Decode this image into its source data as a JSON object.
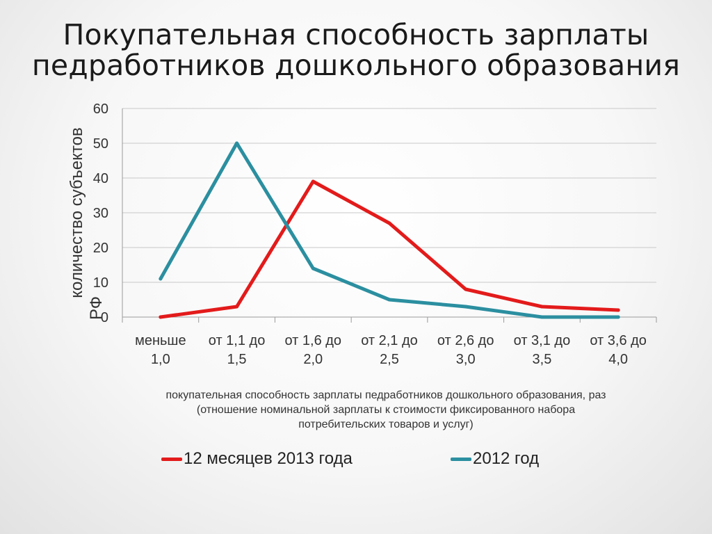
{
  "title_line1": "Покупательная способность зарплаты",
  "title_line2": "педработников дошкольного образования",
  "colors": {
    "series_2013": "#e31b1b",
    "series_2012": "#2b8fa0",
    "grid": "#c8c8c8",
    "axis": "#9a9a9a"
  },
  "chart_data": {
    "type": "line",
    "categories": [
      [
        "меньше",
        "1,0"
      ],
      [
        "от 1,1 до",
        "1,5"
      ],
      [
        "от 1,6 до",
        "2,0"
      ],
      [
        "от 2,1 до",
        "2,5"
      ],
      [
        "от 2,6 до",
        "3,0"
      ],
      [
        "от 3,1 до",
        "3,5"
      ],
      [
        "от 3,6 до",
        "4,0"
      ]
    ],
    "series": [
      {
        "name": "12 месяцев 2013 года",
        "values": [
          0,
          3,
          39,
          27,
          8,
          3,
          2
        ],
        "color": "#e31b1b"
      },
      {
        "name": "2012 год",
        "values": [
          11,
          50,
          14,
          5,
          3,
          0,
          0
        ],
        "color": "#2b8fa0"
      }
    ],
    "ylim": [
      0,
      60
    ],
    "yticks": [
      0,
      10,
      20,
      30,
      40,
      50,
      60
    ],
    "ylabel_line1": "количество субъектов",
    "ylabel_line2": "РФ",
    "xlabel_line1": "покупательная способность зарплаты педработников дошкольного образования, раз",
    "xlabel_line2": "(отношение номинальной зарплаты к стоимости фиксированного набора",
    "xlabel_line3": "потребительских товаров и услуг)",
    "grid": true,
    "legend_position": "bottom"
  }
}
